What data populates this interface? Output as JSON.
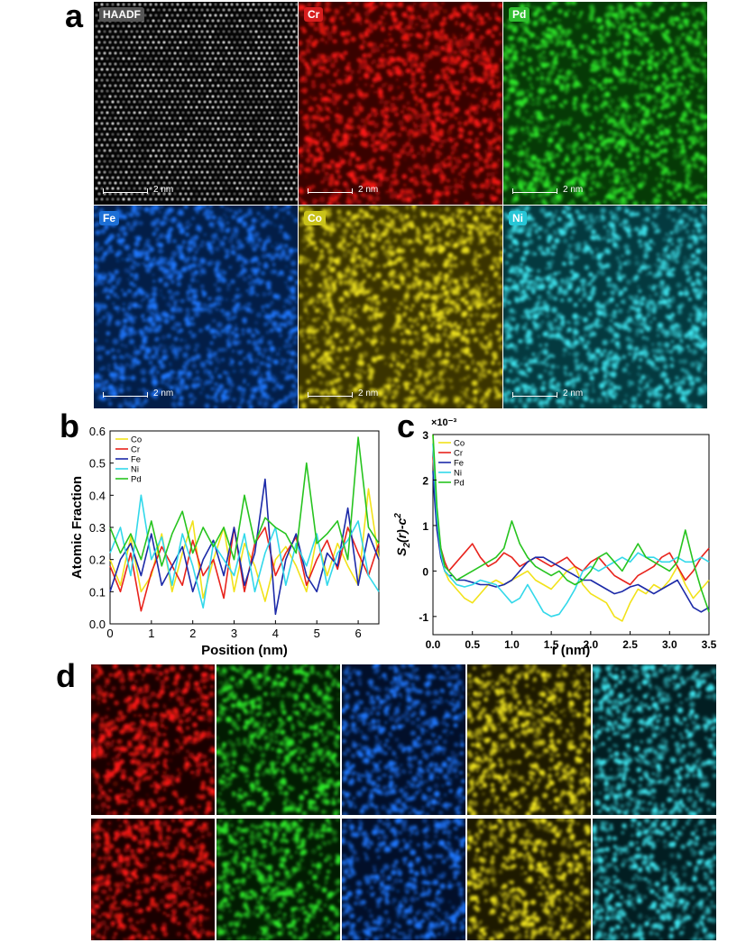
{
  "panel_labels": {
    "a": "a",
    "b": "b",
    "c": "c",
    "d": "d"
  },
  "maps": [
    {
      "label": "HAADF",
      "scale": "2 nm",
      "color": "#cfcfcf",
      "dark": "#050505"
    },
    {
      "label": "Cr",
      "scale": "2 nm",
      "color": "#ff1a14",
      "dark": "#3a0200"
    },
    {
      "label": "Pd",
      "scale": "2 nm",
      "color": "#2ee82a",
      "dark": "#063a06"
    },
    {
      "label": "Fe",
      "scale": "2 nm",
      "color": "#1f78ff",
      "dark": "#031e48"
    },
    {
      "label": "Co",
      "scale": "2 nm",
      "color": "#f0e41f",
      "dark": "#3b3400"
    },
    {
      "label": "Ni",
      "scale": "2 nm",
      "color": "#3fe6f0",
      "dark": "#043a40"
    }
  ],
  "label_bg": {
    "HAADF": "#555555",
    "Cr": "#d71e1e",
    "Pd": "#2fbf2f",
    "Fe": "#1c6fd6",
    "Co": "#c9c219",
    "Ni": "#26c6d6"
  },
  "d_tiles": [
    {
      "color": "#ff1a14",
      "dark": "#1a0000"
    },
    {
      "color": "#2ee82a",
      "dark": "#021c02"
    },
    {
      "color": "#1f78ff",
      "dark": "#020f2a"
    },
    {
      "color": "#f0e41f",
      "dark": "#1e1a00"
    },
    {
      "color": "#3fe6f0",
      "dark": "#021e22"
    }
  ],
  "chart_data": [
    {
      "type": "line",
      "panel": "b",
      "title": "",
      "xlabel": "Position (nm)",
      "ylabel": "Atomic Fraction",
      "xlim": [
        0,
        6.5
      ],
      "ylim": [
        0,
        0.6
      ],
      "xticks": [
        "0",
        "1",
        "2",
        "3",
        "4",
        "5",
        "6"
      ],
      "yticks": [
        "0.0",
        "0.1",
        "0.2",
        "0.3",
        "0.4",
        "0.5",
        "0.6"
      ],
      "legend": "top-left",
      "x": [
        0,
        0.25,
        0.5,
        0.75,
        1,
        1.25,
        1.5,
        1.75,
        2,
        2.25,
        2.5,
        2.75,
        3,
        3.25,
        3.5,
        3.75,
        4,
        4.25,
        4.5,
        4.75,
        5,
        5.25,
        5.5,
        5.75,
        6,
        6.25,
        6.5
      ],
      "series": [
        {
          "name": "Co",
          "color": "#f2e21a",
          "values": [
            0.2,
            0.12,
            0.27,
            0.1,
            0.15,
            0.28,
            0.1,
            0.22,
            0.32,
            0.08,
            0.2,
            0.3,
            0.1,
            0.25,
            0.18,
            0.07,
            0.2,
            0.24,
            0.18,
            0.1,
            0.27,
            0.15,
            0.25,
            0.18,
            0.12,
            0.42,
            0.2
          ]
        },
        {
          "name": "Cr",
          "color": "#e8231c",
          "values": [
            0.18,
            0.1,
            0.22,
            0.04,
            0.16,
            0.24,
            0.18,
            0.12,
            0.26,
            0.15,
            0.2,
            0.08,
            0.3,
            0.1,
            0.25,
            0.3,
            0.15,
            0.22,
            0.27,
            0.12,
            0.2,
            0.26,
            0.17,
            0.3,
            0.22,
            0.15,
            0.25
          ]
        },
        {
          "name": "Fe",
          "color": "#1c2aa8",
          "values": [
            0.1,
            0.2,
            0.25,
            0.15,
            0.28,
            0.12,
            0.18,
            0.24,
            0.1,
            0.2,
            0.26,
            0.15,
            0.3,
            0.12,
            0.22,
            0.45,
            0.03,
            0.2,
            0.28,
            0.15,
            0.1,
            0.22,
            0.18,
            0.36,
            0.12,
            0.28,
            0.2
          ]
        },
        {
          "name": "Ni",
          "color": "#32d8ea",
          "values": [
            0.22,
            0.3,
            0.15,
            0.4,
            0.2,
            0.27,
            0.12,
            0.28,
            0.18,
            0.05,
            0.25,
            0.2,
            0.15,
            0.28,
            0.1,
            0.22,
            0.3,
            0.12,
            0.25,
            0.18,
            0.28,
            0.12,
            0.22,
            0.26,
            0.32,
            0.15,
            0.1
          ]
        },
        {
          "name": "Pd",
          "color": "#27c41f",
          "values": [
            0.3,
            0.22,
            0.28,
            0.2,
            0.32,
            0.18,
            0.28,
            0.35,
            0.22,
            0.3,
            0.24,
            0.3,
            0.2,
            0.4,
            0.25,
            0.33,
            0.3,
            0.28,
            0.22,
            0.5,
            0.25,
            0.28,
            0.32,
            0.2,
            0.58,
            0.3,
            0.25
          ]
        }
      ]
    },
    {
      "type": "line",
      "panel": "c",
      "title": "",
      "xlabel": "r (nm)",
      "ylabel": "S2(r)-c2",
      "ylabel_parts": {
        "s": "S",
        "sub": "2",
        "r": "(r)-c",
        "sup": "2"
      },
      "multiplier": "×10⁻³",
      "xlim": [
        0,
        3.5
      ],
      "ylim": [
        -1.4,
        3
      ],
      "xticks": [
        "0.0",
        "0.5",
        "1.0",
        "1.5",
        "2.0",
        "2.5",
        "3.0",
        "3.5"
      ],
      "yticks": [
        "-1",
        "0",
        "1",
        "2",
        "3"
      ],
      "legend": "top-left",
      "x": [
        0,
        0.02,
        0.05,
        0.1,
        0.15,
        0.2,
        0.25,
        0.3,
        0.4,
        0.5,
        0.6,
        0.7,
        0.8,
        0.9,
        1,
        1.1,
        1.2,
        1.3,
        1.4,
        1.5,
        1.6,
        1.7,
        1.8,
        1.9,
        2,
        2.1,
        2.2,
        2.3,
        2.4,
        2.5,
        2.6,
        2.7,
        2.8,
        2.9,
        3,
        3.1,
        3.2,
        3.3,
        3.4,
        3.5
      ],
      "series": [
        {
          "name": "Co",
          "color": "#f2e21a",
          "values": [
            3,
            2.2,
            1.2,
            0.4,
            0,
            -0.2,
            -0.3,
            -0.4,
            -0.6,
            -0.7,
            -0.5,
            -0.3,
            -0.2,
            -0.3,
            -0.2,
            -0.1,
            0,
            -0.2,
            -0.3,
            -0.4,
            -0.2,
            0,
            0.1,
            -0.3,
            -0.5,
            -0.6,
            -0.7,
            -1,
            -1.1,
            -0.7,
            -0.4,
            -0.5,
            -0.3,
            -0.4,
            -0.2,
            0.1,
            -0.3,
            -0.6,
            -0.4,
            -0.2
          ]
        },
        {
          "name": "Cr",
          "color": "#e8231c",
          "values": [
            2.5,
            2,
            1.1,
            0.5,
            0.2,
            0,
            0.1,
            0.2,
            0.4,
            0.6,
            0.3,
            0.1,
            0.2,
            0.4,
            0.3,
            0.1,
            0.2,
            0.3,
            0.2,
            0.1,
            0.2,
            0.3,
            0.1,
            0,
            0.2,
            0.3,
            0.1,
            -0.1,
            -0.2,
            -0.3,
            -0.1,
            0,
            0.1,
            0.3,
            0.4,
            0.1,
            -0.2,
            0,
            0.3,
            0.5
          ]
        },
        {
          "name": "Fe",
          "color": "#1c2aa8",
          "values": [
            2.2,
            1.6,
            0.9,
            0.3,
            0,
            -0.1,
            -0.1,
            -0.2,
            -0.2,
            -0.25,
            -0.3,
            -0.3,
            -0.35,
            -0.3,
            -0.2,
            0,
            0.2,
            0.3,
            0.3,
            0.2,
            0.1,
            0,
            -0.1,
            -0.2,
            -0.2,
            -0.3,
            -0.4,
            -0.5,
            -0.45,
            -0.35,
            -0.3,
            -0.4,
            -0.5,
            -0.4,
            -0.3,
            -0.2,
            -0.5,
            -0.8,
            -0.9,
            -0.8
          ]
        },
        {
          "name": "Ni",
          "color": "#32d8ea",
          "values": [
            2.8,
            2.1,
            1.2,
            0.4,
            0,
            -0.1,
            -0.2,
            -0.3,
            -0.35,
            -0.3,
            -0.2,
            -0.25,
            -0.3,
            -0.5,
            -0.7,
            -0.6,
            -0.3,
            -0.6,
            -0.9,
            -1,
            -0.95,
            -0.7,
            -0.4,
            0,
            0.1,
            0,
            0.1,
            0.2,
            0.3,
            0.2,
            0.4,
            0.3,
            0.3,
            0.2,
            0.2,
            0.3,
            0.2,
            0.2,
            0.3,
            0.2
          ]
        },
        {
          "name": "Pd",
          "color": "#27c41f",
          "values": [
            3,
            2.4,
            1.4,
            0.5,
            0.1,
            0,
            -0.1,
            -0.2,
            -0.1,
            0,
            0.1,
            0.2,
            0.3,
            0.5,
            1.1,
            0.6,
            0.3,
            0.1,
            0,
            -0.1,
            0,
            -0.2,
            -0.3,
            -0.2,
            0,
            0.3,
            0.4,
            0.2,
            0,
            0.3,
            0.6,
            0.3,
            0.2,
            0.1,
            0,
            0.2,
            0.9,
            0.2,
            -0.4,
            -0.9
          ]
        }
      ]
    }
  ]
}
